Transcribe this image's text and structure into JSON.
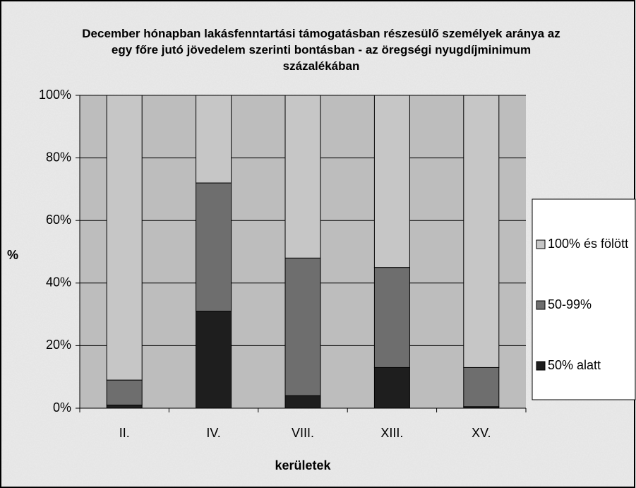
{
  "chart_data": {
    "type": "stacked_bar",
    "title": "December hónapban lakásfenntartási támogatásban részesülő személyek aránya az egy főre jutó jövedelem szerinti bontásban - az öregségi nyugdíjminimum százalékában",
    "x_label": "kerületek",
    "y_label": "%",
    "categories": [
      "II.",
      "IV.",
      "VIII.",
      "XIII.",
      "XV."
    ],
    "series": [
      {
        "name": "50% alatt",
        "color": "#1e1e1e",
        "values": [
          1,
          31,
          4,
          13,
          0.5
        ]
      },
      {
        "name": "50-99%",
        "color": "#6e6e6e",
        "values": [
          8,
          41,
          44,
          32,
          12.5
        ]
      },
      {
        "name": "100% és fölött",
        "color": "#c6c6c6",
        "values": [
          91,
          28,
          52,
          55,
          87
        ]
      }
    ],
    "ylim": [
      0,
      100
    ],
    "yticks": [
      {
        "value": 0,
        "label": "0%"
      },
      {
        "value": 20,
        "label": "20%"
      },
      {
        "value": 40,
        "label": "40%"
      },
      {
        "value": 60,
        "label": "60%"
      },
      {
        "value": 80,
        "label": "80%"
      },
      {
        "value": 100,
        "label": "100%"
      }
    ],
    "grid": true,
    "legend": "right"
  }
}
